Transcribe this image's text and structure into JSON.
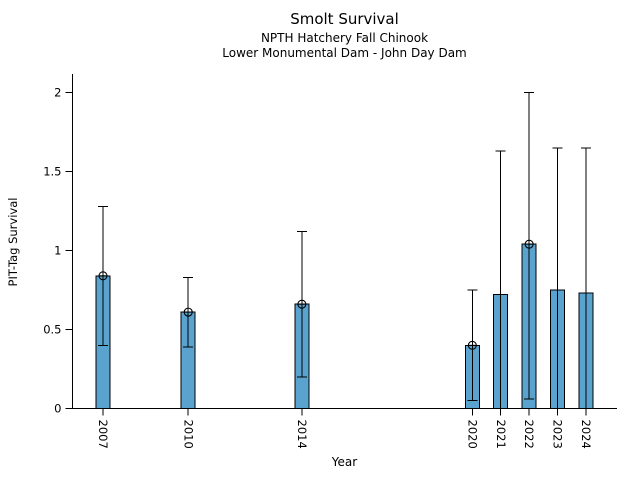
{
  "chart_data": {
    "type": "bar",
    "title": "Smolt Survival",
    "subtitle1": "NPTH Hatchery Fall Chinook",
    "subtitle2": "Lower Monumental Dam - John Day Dam",
    "xlabel": "Year",
    "ylabel": "PIT-Tag Survival",
    "x_type": "linear-year",
    "ylim": [
      0,
      2.11
    ],
    "yticks": [
      0,
      0.5,
      1,
      1.5,
      2
    ],
    "ytick_labels": [
      "0",
      "0.5",
      "1",
      "1.5",
      "2"
    ],
    "grid": false,
    "legend": false,
    "bar_color": "#5BA3CF",
    "bar_edge_color": "#000000",
    "errorbar_color": "#000000",
    "marker": "circle-plus",
    "points": [
      {
        "year": 2007,
        "value": 0.84,
        "ci_low": 0.4,
        "ci_high": 1.28,
        "marker": true,
        "low_cap": true
      },
      {
        "year": 2010,
        "value": 0.61,
        "ci_low": 0.39,
        "ci_high": 0.83,
        "marker": true,
        "low_cap": true
      },
      {
        "year": 2014,
        "value": 0.66,
        "ci_low": 0.2,
        "ci_high": 1.12,
        "marker": true,
        "low_cap": true
      },
      {
        "year": 2020,
        "value": 0.4,
        "ci_low": 0.05,
        "ci_high": 0.75,
        "marker": true,
        "low_cap": true
      },
      {
        "year": 2021,
        "value": 0.72,
        "ci_low": 0.0,
        "ci_high": 1.63,
        "marker": false,
        "low_cap": false
      },
      {
        "year": 2022,
        "value": 1.04,
        "ci_low": 0.06,
        "ci_high": 2.0,
        "marker": true,
        "low_cap": true
      },
      {
        "year": 2023,
        "value": 0.75,
        "ci_low": 0.0,
        "ci_high": 1.65,
        "marker": false,
        "low_cap": false
      },
      {
        "year": 2024,
        "value": 0.73,
        "ci_low": 0.0,
        "ci_high": 1.65,
        "marker": false,
        "low_cap": false
      }
    ]
  }
}
